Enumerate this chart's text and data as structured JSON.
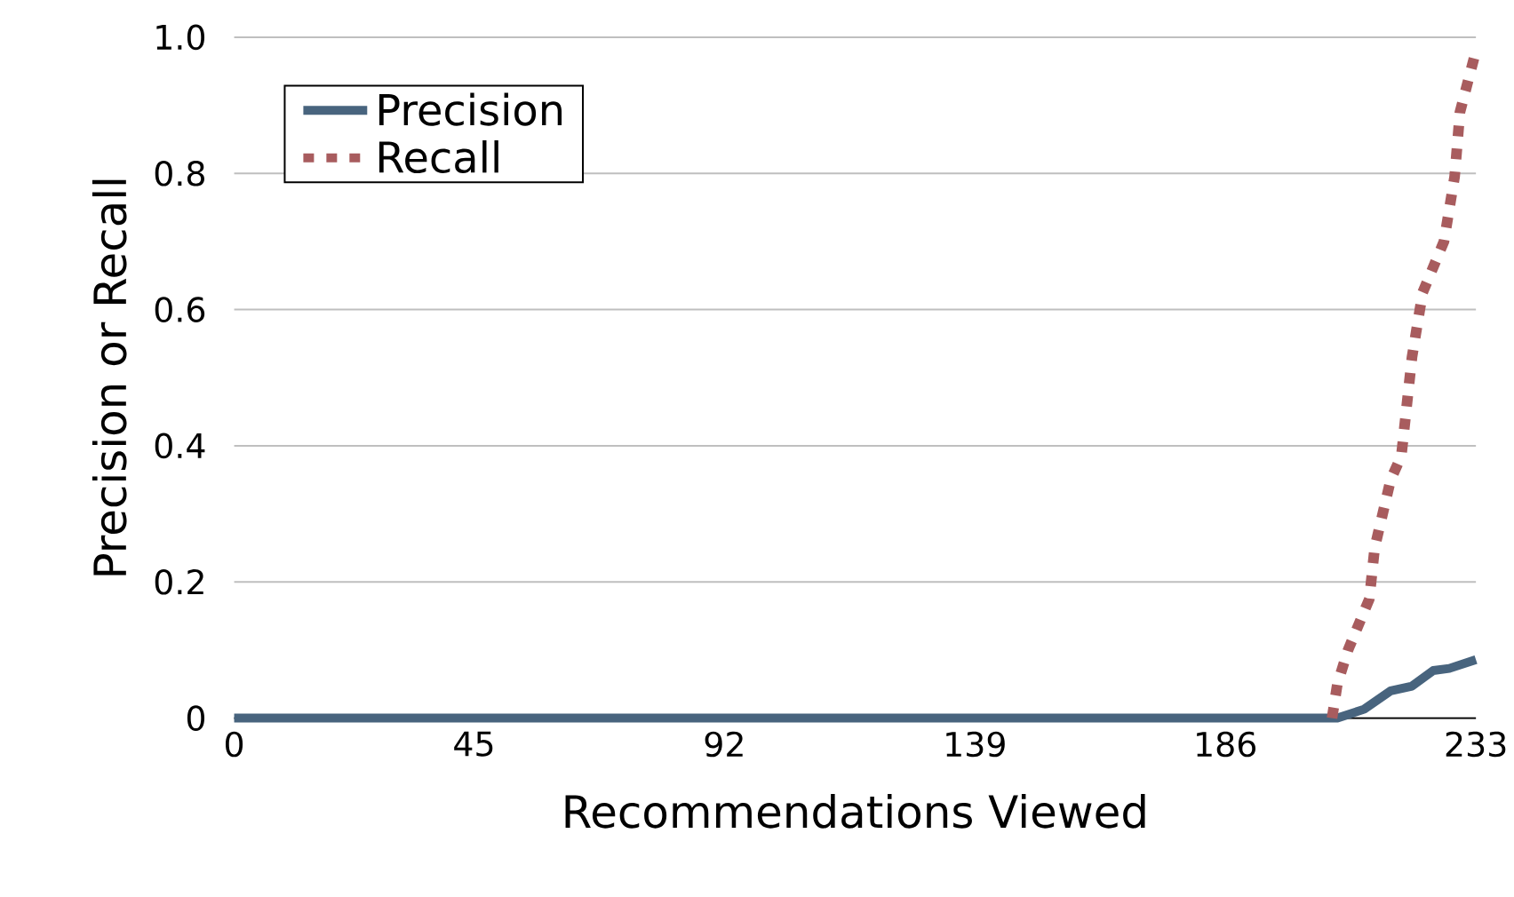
{
  "chart_data": {
    "type": "line",
    "xlabel": "Recommendations Viewed",
    "ylabel": "Precision or Recall",
    "xlim": [
      0,
      233
    ],
    "xticks": [
      0,
      45,
      92,
      139,
      186,
      233
    ],
    "ylim": [
      0,
      1.0
    ],
    "yticks": [
      {
        "value": 0,
        "label": "0"
      },
      {
        "value": 0.2,
        "label": "0.2"
      },
      {
        "value": 0.4,
        "label": "0.4"
      },
      {
        "value": 0.6,
        "label": "0.6"
      },
      {
        "value": 0.8,
        "label": "0.8"
      },
      {
        "value": 1.0,
        "label": "1.0"
      }
    ],
    "grid": "y",
    "legend": "top left",
    "marker": "none",
    "series": [
      {
        "name": "Precision",
        "color": "#48647e",
        "line_style": "solid",
        "x": [
          0,
          207,
          212,
          217,
          221,
          225,
          228,
          233
        ],
        "values": [
          0,
          0,
          0.013,
          0.04,
          0.047,
          0.07,
          0.073,
          0.086
        ]
      },
      {
        "name": "Recall",
        "color": "#a85c5e",
        "line_style": "dotted",
        "x": [
          206,
          207,
          209,
          213,
          214,
          217,
          219,
          221,
          223,
          227,
          229,
          230,
          233
        ],
        "values": [
          0,
          0.05,
          0.1,
          0.175,
          0.25,
          0.35,
          0.385,
          0.53,
          0.625,
          0.7,
          0.795,
          0.89,
          0.98
        ]
      }
    ]
  }
}
